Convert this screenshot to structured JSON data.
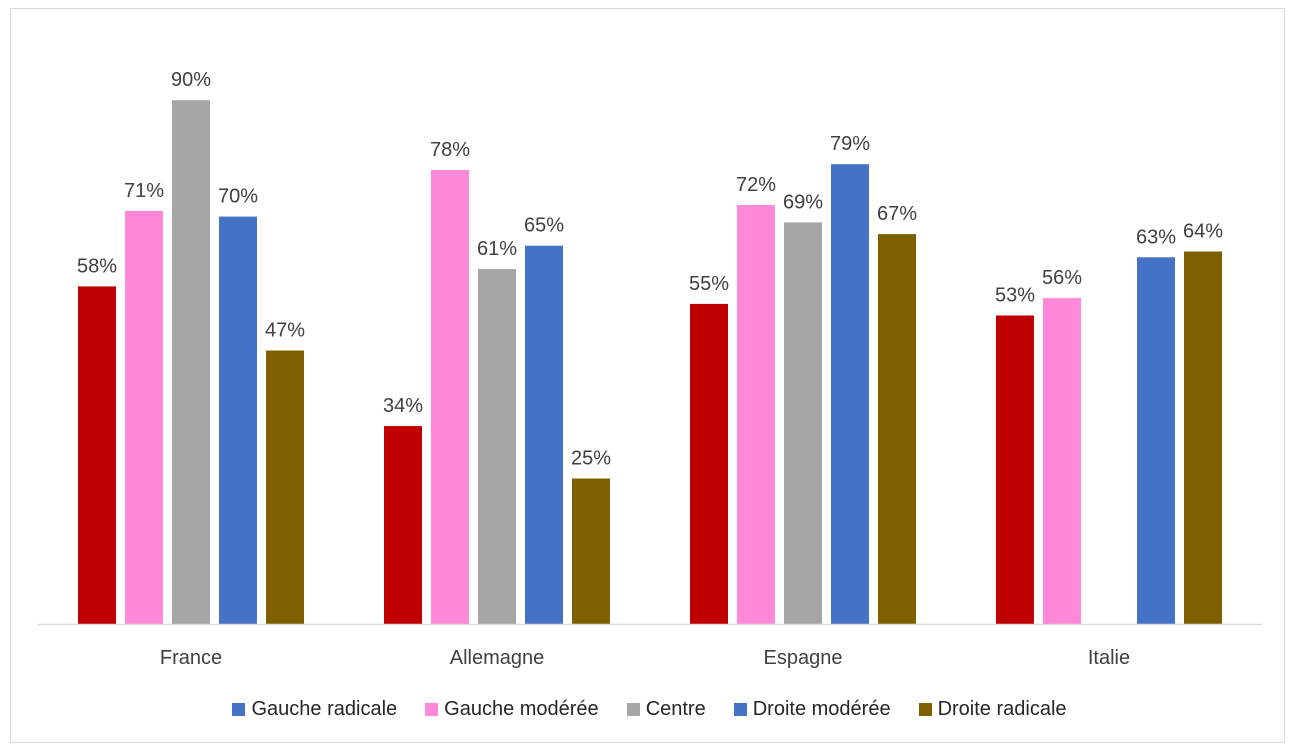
{
  "chart_data": {
    "type": "bar",
    "categories": [
      "France",
      "Allemagne",
      "Espagne",
      "Italie"
    ],
    "series": [
      {
        "name": "Gauche radicale",
        "color": "#c00000",
        "legend_color": "#4472c4",
        "values": [
          58,
          34,
          55,
          53
        ],
        "labels": [
          "58%",
          "34%",
          "55%",
          "53%"
        ]
      },
      {
        "name": "Gauche modérée",
        "color": "#ff88d9",
        "legend_color": "#ff88d9",
        "values": [
          71,
          78,
          72,
          56
        ],
        "labels": [
          "71%",
          "78%",
          "72%",
          "56%"
        ]
      },
      {
        "name": "Centre",
        "color": "#a6a6a6",
        "legend_color": "#a6a6a6",
        "values": [
          90,
          61,
          69,
          null
        ],
        "labels": [
          "90%",
          "61%",
          "69%",
          ""
        ]
      },
      {
        "name": "Droite modérée",
        "color": "#4472c4",
        "legend_color": "#4472c4",
        "values": [
          70,
          65,
          79,
          63
        ],
        "labels": [
          "70%",
          "65%",
          "79%",
          "63%"
        ]
      },
      {
        "name": "Droite radicale",
        "color": "#7f6000",
        "legend_color": "#7f6000",
        "values": [
          47,
          25,
          67,
          64
        ],
        "labels": [
          "47%",
          "25%",
          "67%",
          "64%"
        ]
      }
    ],
    "title": "",
    "xlabel": "",
    "ylabel": "",
    "ylim": [
      0,
      100
    ],
    "grid": false,
    "legend_position": "bottom"
  }
}
